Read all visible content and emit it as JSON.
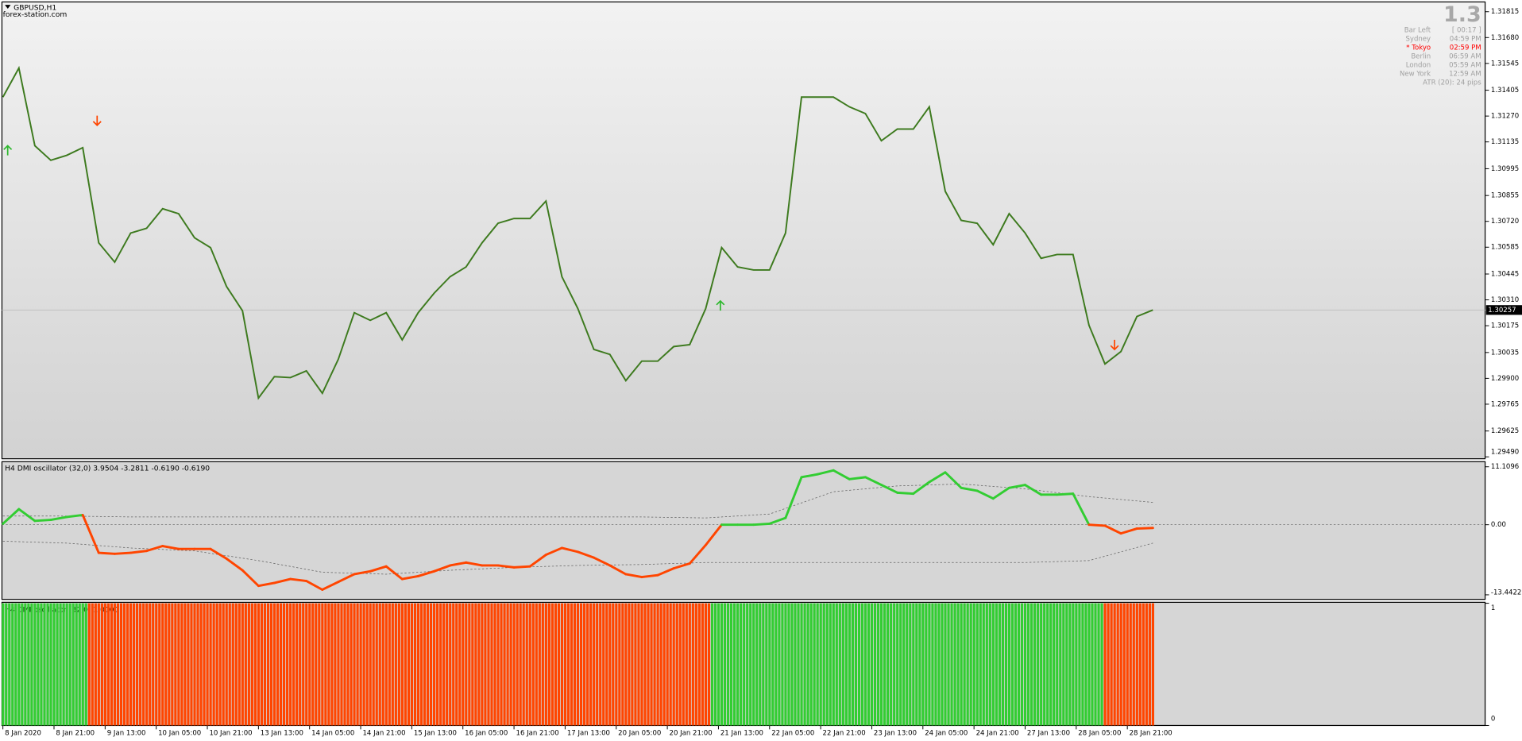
{
  "chart_data": [
    {
      "type": "line",
      "title": "GBPUSD,H1",
      "subtitle": "forex-station.com",
      "xlim": [
        -0.3,
        464
      ],
      "ylim": [
        1.2948,
        1.31861
      ],
      "yticks": [
        1.31815,
        {
          "value": 1.3168,
          "label": "1.31680"
        },
        1.31545,
        1.31405,
        {
          "value": 1.3127,
          "label": "1.31270"
        },
        1.31135,
        1.30995,
        1.30855,
        {
          "value": 1.3072,
          "label": "1.30720"
        },
        1.30585,
        1.30445,
        {
          "value": 1.3031,
          "label": "1.30310"
        },
        1.30175,
        1.30035,
        {
          "value": 1.299,
          "label": "1.29900"
        },
        1.29765,
        1.29625,
        {
          "value": 1.2949,
          "label": "1.29490"
        }
      ],
      "current_price": 1.30257,
      "x": [
        0,
        5,
        10,
        15,
        20,
        25,
        30,
        35,
        40,
        45,
        50,
        55,
        60,
        65,
        70,
        75,
        80,
        85,
        90,
        95,
        100,
        105,
        110,
        115,
        120,
        125,
        130,
        135,
        140,
        145,
        150,
        155,
        160,
        165,
        170,
        175,
        180,
        185,
        190,
        195,
        200,
        205,
        210,
        215,
        220,
        225,
        230,
        235,
        240,
        245,
        250,
        255,
        260,
        265,
        270,
        275,
        280,
        285,
        290,
        295,
        300,
        305,
        310,
        315,
        320,
        325,
        330,
        335,
        340,
        345,
        350,
        355,
        360
      ],
      "series": [
        {
          "color": "#3d7a1e",
          "values": [
            1.31369,
            1.31521,
            1.31115,
            1.31039,
            1.31065,
            1.31105,
            1.30608,
            1.30507,
            1.30659,
            1.30684,
            1.30786,
            1.3076,
            1.30634,
            1.30583,
            1.3038,
            1.30253,
            1.29797,
            1.29909,
            1.29904,
            1.29939,
            1.29822,
            1.3,
            1.30243,
            1.30203,
            1.30243,
            1.30101,
            1.30243,
            1.30345,
            1.30431,
            1.30482,
            1.30608,
            1.3071,
            1.30735,
            1.30735,
            1.30826,
            1.30431,
            1.30264,
            1.30051,
            1.30025,
            1.29888,
            1.2999,
            1.2999,
            1.30066,
            1.30076,
            1.30264,
            1.30583,
            1.30482,
            1.30466,
            1.30466,
            1.30659,
            1.31369,
            1.31369,
            1.31369,
            1.31318,
            1.31283,
            1.31141,
            1.31202,
            1.31202,
            1.31318,
            1.30877,
            1.30725,
            1.3071,
            1.30598,
            1.3076,
            1.30659,
            1.30527,
            1.30547,
            1.30547,
            1.30177,
            1.29975,
            1.3004,
            1.30223,
            1.30257
          ]
        }
      ],
      "arrows": [
        {
          "x": 1.5,
          "value": 1.3109,
          "direction": "up",
          "color": "#2eb82e"
        },
        {
          "x": 29.5,
          "value": 1.31247,
          "direction": "down",
          "color": "#ff4500"
        },
        {
          "x": 224.6,
          "value": 1.30279,
          "direction": "up",
          "color": "#2eb82e"
        },
        {
          "x": 348,
          "value": 1.30076,
          "direction": "down",
          "color": "#ff4500"
        }
      ]
    },
    {
      "type": "line",
      "title": "H4 DMI oscillator (32,0) 3.9504 -3.2811 -0.6190 -0.6190",
      "xlim": [
        -0.3,
        464
      ],
      "ylim": [
        -14.32,
        12.09
      ],
      "yticks": [
        11.1096,
        {
          "value": 0,
          "label": "0.00"
        },
        -13.4422
      ],
      "x": [
        0,
        5,
        10,
        15,
        20,
        25,
        30,
        35,
        40,
        45,
        50,
        55,
        60,
        65,
        70,
        75,
        80,
        85,
        90,
        95,
        100,
        105,
        110,
        115,
        120,
        125,
        130,
        135,
        140,
        145,
        150,
        155,
        160,
        165,
        170,
        175,
        180,
        185,
        190,
        195,
        200,
        205,
        210,
        215,
        220,
        225,
        230,
        235,
        240,
        245,
        250,
        255,
        260,
        265,
        270,
        275,
        280,
        285,
        290,
        295,
        300,
        305,
        310,
        315,
        320,
        325,
        330,
        335,
        340,
        345,
        350,
        355,
        360
      ],
      "series": [
        {
          "color_up": "#32cd32",
          "color_down": "#ff4500",
          "values": [
            0.19,
            2.98,
            0.74,
            0.93,
            1.49,
            1.86,
            -5.39,
            -5.58,
            -5.39,
            -5.02,
            -4.09,
            -4.65,
            -4.65,
            -4.65,
            -6.51,
            -8.74,
            -11.72,
            -11.16,
            -10.42,
            -10.79,
            -12.46,
            -10.97,
            -9.49,
            -8.93,
            -8.0,
            -10.42,
            -9.86,
            -8.93,
            -7.81,
            -7.25,
            -7.81,
            -7.81,
            -8.18,
            -8.0,
            -5.77,
            -4.46,
            -5.21,
            -6.32,
            -7.81,
            -9.49,
            -10.04,
            -9.67,
            -8.37,
            -7.44,
            -3.91,
            0.0,
            0.0,
            0.0,
            0.19,
            1.3,
            9.11,
            9.67,
            10.42,
            8.74,
            9.11,
            7.63,
            6.14,
            5.95,
            8.18,
            10.04,
            7.07,
            6.51,
            5.02,
            7.07,
            7.63,
            5.77,
            5.77,
            5.95,
            0.0,
            -0.19,
            -1.67,
            -0.74,
            -0.62
          ]
        }
      ],
      "levels": [
        {
          "color": "#606060",
          "x": [
            0,
            20,
            40,
            60,
            80,
            100,
            120,
            140,
            160,
            180,
            200,
            220,
            240,
            260,
            280,
            300,
            320,
            340,
            360
          ],
          "values": [
            1.67,
            1.67,
            1.49,
            1.49,
            1.49,
            1.49,
            1.49,
            1.49,
            1.49,
            1.49,
            1.49,
            1.3,
            2.05,
            6.32,
            7.44,
            7.81,
            6.88,
            5.39,
            4.28
          ]
        },
        {
          "color": "#606060",
          "x": [
            0,
            20,
            40,
            60,
            80,
            100,
            120,
            140,
            160,
            180,
            200,
            220,
            240,
            260,
            280,
            300,
            320,
            340,
            360
          ],
          "values": [
            -3.16,
            -3.53,
            -4.46,
            -5.02,
            -6.88,
            -9.11,
            -9.49,
            -8.74,
            -8.18,
            -7.81,
            -7.63,
            -7.25,
            -7.25,
            -7.25,
            -7.25,
            -7.25,
            -7.25,
            -6.88,
            -3.53
          ]
        }
      ]
    },
    {
      "type": "bar",
      "title": "H4 DMI oscillator (32,0) 1.0000",
      "xlim": [
        -0.3,
        464
      ],
      "ylim": [
        0,
        1
      ],
      "yticks": [
        1,
        0
      ],
      "xticks": [
        {
          "value": 0,
          "label": "8 Jan 2020"
        },
        {
          "value": 16,
          "label": "8 Jan 21:00"
        },
        {
          "value": 32,
          "label": "9 Jan 13:00"
        },
        {
          "value": 48,
          "label": "10 Jan 05:00"
        },
        {
          "value": 64,
          "label": "10 Jan 21:00"
        },
        {
          "value": 80,
          "label": "13 Jan 13:00"
        },
        {
          "value": 96,
          "label": "14 Jan 05:00"
        },
        {
          "value": 112,
          "label": "14 Jan 21:00"
        },
        {
          "value": 128,
          "label": "15 Jan 13:00"
        },
        {
          "value": 144,
          "label": "16 Jan 05:00"
        },
        {
          "value": 160,
          "label": "16 Jan 21:00"
        },
        {
          "value": 176,
          "label": "17 Jan 13:00"
        },
        {
          "value": 192,
          "label": "20 Jan 05:00"
        },
        {
          "value": 208,
          "label": "20 Jan 21:00"
        },
        {
          "value": 224,
          "label": "21 Jan 13:00"
        },
        {
          "value": 240,
          "label": "22 Jan 05:00"
        },
        {
          "value": 256,
          "label": "22 Jan 21:00"
        },
        {
          "value": 272,
          "label": "23 Jan 13:00"
        },
        {
          "value": 288,
          "label": "24 Jan 05:00"
        },
        {
          "value": 304,
          "label": "24 Jan 21:00"
        },
        {
          "value": 320,
          "label": "27 Jan 13:00"
        },
        {
          "value": 336,
          "label": "28 Jan 05:00"
        },
        {
          "value": 352,
          "label": "28 Jan 21:00"
        }
      ],
      "segments": [
        {
          "from": 0,
          "to": 26,
          "value": 1,
          "color": "#32cd32"
        },
        {
          "from": 27,
          "to": 221,
          "value": 1,
          "color": "#ff4500"
        },
        {
          "from": 222,
          "to": 344,
          "value": 1,
          "color": "#32cd32"
        },
        {
          "from": 345,
          "to": 360,
          "value": 1,
          "color": "#ff4500"
        }
      ]
    }
  ],
  "info_panel": {
    "big": "1.3",
    "rows": [
      {
        "label": "Bar Left",
        "time": "[ 00:17 ]",
        "color": "#a0a0a0"
      },
      {
        "label": "Sydney",
        "time": "04:59 PM",
        "color": "#a0a0a0"
      },
      {
        "label": "* Tokyo",
        "time": "02:59 PM",
        "color": "#ff0000"
      },
      {
        "label": "Berlin",
        "time": "06:59 AM",
        "color": "#a0a0a0"
      },
      {
        "label": "London",
        "time": "05:59 AM",
        "color": "#a0a0a0"
      },
      {
        "label": "New York",
        "time": "12:59 AM",
        "color": "#a0a0a0"
      }
    ],
    "atr": "ATR (20): 24 pips"
  }
}
